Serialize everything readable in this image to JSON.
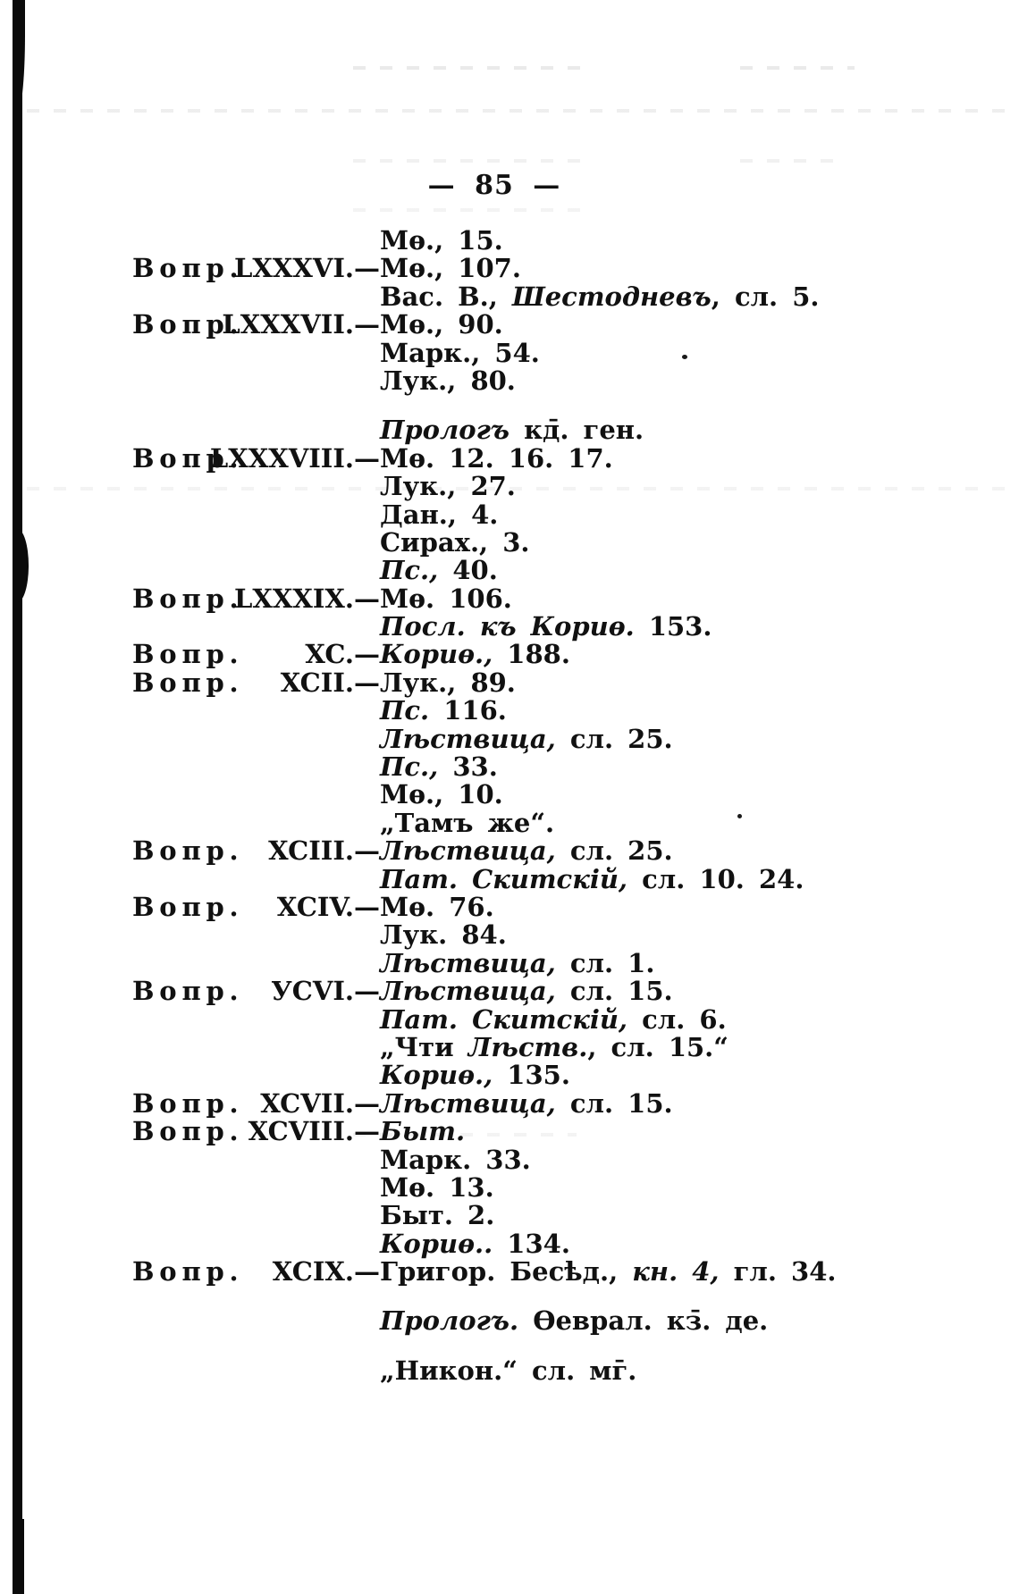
{
  "page": {
    "number": "— 85 —"
  },
  "rows": [
    {
      "q": "",
      "n": "",
      "segs": [
        {
          "t": "Мѳ., 15."
        }
      ]
    },
    {
      "q": "Вопр.",
      "n": "LXXXVI.—",
      "segs": [
        {
          "t": "Мѳ., 107."
        }
      ]
    },
    {
      "q": "",
      "n": "",
      "segs": [
        {
          "t": "Вас. В., "
        },
        {
          "t": "Шестодневъ",
          "i": true
        },
        {
          "t": ", сл. 5."
        }
      ]
    },
    {
      "q": "Вопр.",
      "n": "LXXXVII.—",
      "segs": [
        {
          "t": "Мѳ., 90."
        }
      ]
    },
    {
      "q": "",
      "n": "",
      "segs": [
        {
          "t": "Марк., 54."
        }
      ]
    },
    {
      "q": "",
      "n": "",
      "segs": [
        {
          "t": "Лук., 80."
        }
      ]
    },
    {
      "q": "",
      "n": "",
      "gap": true,
      "segs": [
        {
          "t": "Прологъ",
          "i": true
        },
        {
          "t": " кд̄. ген."
        }
      ]
    },
    {
      "q": "Вопр.",
      "n": "LXXXVIII.—",
      "segs": [
        {
          "t": "Мѳ. 12. 16. 17."
        }
      ]
    },
    {
      "q": "",
      "n": "",
      "segs": [
        {
          "t": "Лук., 27."
        }
      ]
    },
    {
      "q": "",
      "n": "",
      "segs": [
        {
          "t": "Дан., 4."
        }
      ]
    },
    {
      "q": "",
      "n": "",
      "segs": [
        {
          "t": "Сирах., 3."
        }
      ]
    },
    {
      "q": "",
      "n": "",
      "segs": [
        {
          "t": "Пс.,",
          "i": true
        },
        {
          "t": " 40."
        }
      ]
    },
    {
      "q": "Вопр.",
      "n": "LXXXIX.—",
      "segs": [
        {
          "t": "Мѳ. 106."
        }
      ]
    },
    {
      "q": "",
      "n": "",
      "segs": [
        {
          "t": "Посл. къ Кориѳ.",
          "i": true
        },
        {
          "t": " 153."
        }
      ]
    },
    {
      "q": "Вопр.",
      "n": "XC.—",
      "segs": [
        {
          "t": "Кориѳ.,",
          "i": true
        },
        {
          "t": " 188."
        }
      ]
    },
    {
      "q": "Вопр.",
      "n": "XCII.—",
      "segs": [
        {
          "t": "Лук., 89."
        }
      ]
    },
    {
      "q": "",
      "n": "",
      "segs": [
        {
          "t": "Пс.",
          "i": true
        },
        {
          "t": " 116."
        }
      ]
    },
    {
      "q": "",
      "n": "",
      "segs": [
        {
          "t": "Лѣствица,",
          "i": true
        },
        {
          "t": " сл. 25."
        }
      ]
    },
    {
      "q": "",
      "n": "",
      "segs": [
        {
          "t": "Пс.,",
          "i": true
        },
        {
          "t": " 33."
        }
      ]
    },
    {
      "q": "",
      "n": "",
      "segs": [
        {
          "t": "Мѳ., 10."
        }
      ]
    },
    {
      "q": "",
      "n": "",
      "segs": [
        {
          "t": "„Тамъ же“."
        }
      ]
    },
    {
      "q": "Вопр.",
      "n": "XCIII.—",
      "segs": [
        {
          "t": "Лѣствица,",
          "i": true
        },
        {
          "t": " сл. 25."
        }
      ]
    },
    {
      "q": "",
      "n": "",
      "segs": [
        {
          "t": "Пат. Скитскій,",
          "i": true
        },
        {
          "t": " сл. 10. 24."
        }
      ]
    },
    {
      "q": "Вопр.",
      "n": "XCIV.—",
      "segs": [
        {
          "t": "Мѳ. 76."
        }
      ]
    },
    {
      "q": "",
      "n": "",
      "segs": [
        {
          "t": "Лук. 84."
        }
      ]
    },
    {
      "q": "",
      "n": "",
      "segs": [
        {
          "t": "Лѣствица,",
          "i": true
        },
        {
          "t": " сл. 1."
        }
      ]
    },
    {
      "q": "Вопр.",
      "n": "УCVI.—",
      "segs": [
        {
          "t": "Лѣствица,",
          "i": true
        },
        {
          "t": " сл. 15."
        }
      ]
    },
    {
      "q": "",
      "n": "",
      "segs": [
        {
          "t": "Пат. Скитскій,",
          "i": true
        },
        {
          "t": " сл. 6."
        }
      ]
    },
    {
      "q": "",
      "n": "",
      "segs": [
        {
          "t": "„Чти "
        },
        {
          "t": "Лѣств.",
          "i": true
        },
        {
          "t": ", сл. 15.“"
        }
      ]
    },
    {
      "q": "",
      "n": "",
      "segs": [
        {
          "t": "Кориѳ.,",
          "i": true
        },
        {
          "t": " 135."
        }
      ]
    },
    {
      "q": "Вопр.",
      "n": "XCVII.—",
      "segs": [
        {
          "t": "Лѣствица,",
          "i": true
        },
        {
          "t": " сл. 15."
        }
      ]
    },
    {
      "q": "Вопр.",
      "n": "XCVIII.—",
      "segs": [
        {
          "t": "Быт.",
          "i": true
        }
      ]
    },
    {
      "q": "",
      "n": "",
      "segs": [
        {
          "t": "Марк. 33."
        }
      ]
    },
    {
      "q": "",
      "n": "",
      "segs": [
        {
          "t": "Мѳ. 13."
        }
      ]
    },
    {
      "q": "",
      "n": "",
      "segs": [
        {
          "t": "Быт. 2."
        }
      ]
    },
    {
      "q": "",
      "n": "",
      "segs": [
        {
          "t": "Кориѳ..",
          "i": true
        },
        {
          "t": " 134."
        }
      ]
    },
    {
      "q": "Вопр.",
      "n": "XCIX.—",
      "segs": [
        {
          "t": "Григор. Бесѣд., "
        },
        {
          "t": "кн. 4,",
          "i": true
        },
        {
          "t": " гл. 34."
        }
      ]
    },
    {
      "q": "",
      "n": "",
      "gap": true,
      "segs": [
        {
          "t": "Прологъ.",
          "i": true
        },
        {
          "t": " Ѳеврал. кз̄. де."
        }
      ]
    },
    {
      "q": "",
      "n": "",
      "gap": true,
      "segs": [
        {
          "t": "„Никон.“ сл. мг̄."
        }
      ]
    }
  ]
}
